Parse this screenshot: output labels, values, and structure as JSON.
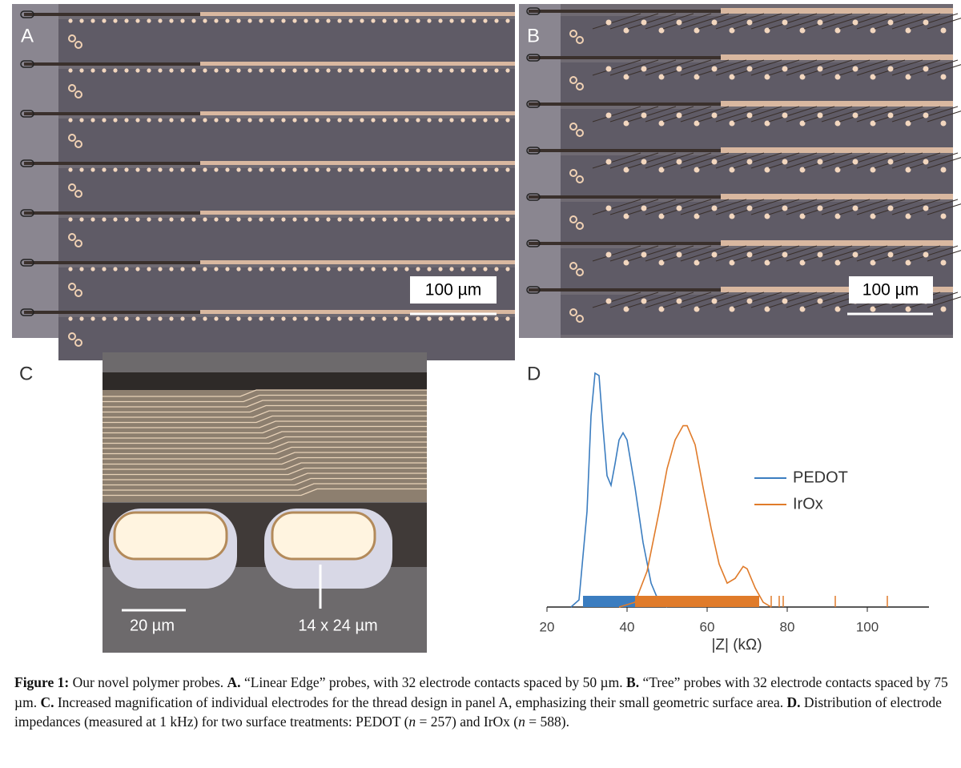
{
  "panels": {
    "a": {
      "label": "A",
      "scale_bar": "100 µm"
    },
    "b": {
      "label": "B",
      "scale_bar": "100 µm"
    },
    "c": {
      "label": "C",
      "scale_bar": "20 µm",
      "annotation": "14 x 24 µm"
    }
  },
  "chart_data": {
    "type": "line",
    "label": "D",
    "xlabel": "|Z| (kΩ)",
    "xlim": [
      20,
      115
    ],
    "xticks": [
      20,
      40,
      60,
      80,
      100
    ],
    "ylim": [
      0,
      1
    ],
    "legend": "right",
    "series": [
      {
        "name": "PEDOT",
        "color": "#3b7dc0",
        "x": [
          26,
          28,
          30,
          31,
          32,
          33,
          34,
          35,
          36,
          37,
          38,
          39,
          40,
          42,
          44,
          46,
          48,
          50
        ],
        "values": [
          0,
          0.03,
          0.4,
          0.8,
          0.98,
          0.97,
          0.75,
          0.55,
          0.51,
          0.6,
          0.7,
          0.73,
          0.7,
          0.5,
          0.27,
          0.1,
          0.02,
          0
        ],
        "rug_span": [
          29,
          43
        ],
        "rug": []
      },
      {
        "name": "IrOx",
        "color": "#e07b2a",
        "x": [
          38,
          42,
          45,
          48,
          50,
          52,
          54,
          55,
          57,
          59,
          61,
          63,
          65,
          67,
          69,
          70,
          72,
          74,
          76
        ],
        "values": [
          0,
          0.02,
          0.15,
          0.4,
          0.58,
          0.7,
          0.76,
          0.76,
          0.68,
          0.5,
          0.33,
          0.18,
          0.1,
          0.12,
          0.17,
          0.16,
          0.08,
          0.02,
          0
        ],
        "rug_span": [
          42,
          73
        ],
        "rug": [
          76,
          78,
          79,
          92,
          105
        ]
      }
    ]
  },
  "caption": {
    "segments": [
      {
        "text": "Figure 1:",
        "style": "bold"
      },
      {
        "text": " Our novel polymer probes. ",
        "style": "normal"
      },
      {
        "text": "A.",
        "style": "bold"
      },
      {
        "text": " “Linear Edge” probes, with 32 electrode contacts spaced by 50 µm. ",
        "style": "normal"
      },
      {
        "text": "B.",
        "style": "bold"
      },
      {
        "text": " “Tree” probes with 32 electrode contacts spaced by 75 µm. ",
        "style": "normal"
      },
      {
        "text": "C.",
        "style": "bold"
      },
      {
        "text": " Increased magnification of individual electrodes for the thread design in panel A, emphasizing their small geometric surface area. ",
        "style": "normal"
      },
      {
        "text": "D.",
        "style": "bold"
      },
      {
        "text": " Distribution of electrode impedances (measured at 1 kHz) for two surface treatments: PEDOT (",
        "style": "normal"
      },
      {
        "text": "n",
        "style": "italic"
      },
      {
        "text": " = 257) and IrOx (",
        "style": "normal"
      },
      {
        "text": "n",
        "style": "italic"
      },
      {
        "text": " = 588).",
        "style": "normal"
      }
    ]
  }
}
